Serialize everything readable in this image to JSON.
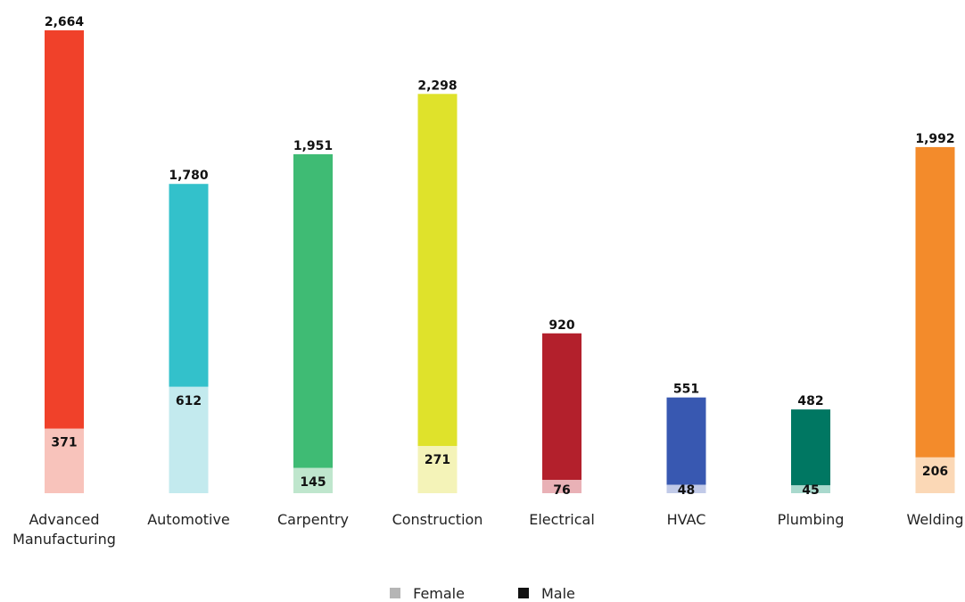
{
  "chart_data": {
    "type": "bar",
    "stacked": true,
    "categories": [
      "Advanced Manufacturing",
      "Automotive",
      "Carpentry",
      "Construction",
      "Electrical",
      "HVAC",
      "Plumbing",
      "Welding"
    ],
    "category_lines": [
      [
        "Advanced",
        "Manufacturing"
      ],
      [
        "Automotive"
      ],
      [
        "Carpentry"
      ],
      [
        "Construction"
      ],
      [
        "Electrical"
      ],
      [
        "HVAC"
      ],
      [
        "Plumbing"
      ],
      [
        "Welding"
      ]
    ],
    "series": [
      {
        "name": "Female",
        "values": [
          371,
          612,
          145,
          271,
          76,
          48,
          45,
          206
        ]
      },
      {
        "name": "Male",
        "values": [
          2293,
          1168,
          1806,
          2027,
          844,
          503,
          437,
          1786
        ]
      }
    ],
    "totals": [
      2664,
      1780,
      1951,
      2298,
      920,
      551,
      482,
      1992
    ],
    "total_labels": [
      "2,664",
      "1,780",
      "1,951",
      "2,298",
      "920",
      "551",
      "482",
      "1,992"
    ],
    "female_labels": [
      "371",
      "612",
      "145",
      "271",
      "76",
      "48",
      "45",
      "206"
    ],
    "male_colors": [
      "#f0412a",
      "#33c1cb",
      "#3fbb74",
      "#dfe22b",
      "#b3202c",
      "#3858b1",
      "#007762",
      "#f38b2b"
    ],
    "female_colors": [
      "#f8c3bb",
      "#c3eaee",
      "#bfe6cd",
      "#f4f3b8",
      "#e9b1b6",
      "#c1cae8",
      "#a9d9cd",
      "#fbd8b6"
    ],
    "ylim": [
      0,
      2700
    ],
    "grid": false,
    "legend_position": "bottom-center",
    "title": "",
    "xlabel": "",
    "ylabel": ""
  },
  "legend": {
    "female_label": "Female",
    "male_label": "Male",
    "female_color": "#b5b5b5",
    "male_color": "#111111"
  }
}
